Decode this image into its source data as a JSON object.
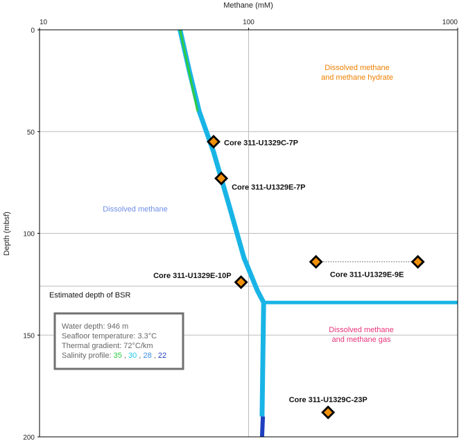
{
  "chart_data": {
    "type": "line",
    "xlabel": "Methane (mM)",
    "ylabel": "Depth (mbsf)",
    "xscale": "log",
    "xlim": [
      10,
      1000
    ],
    "ylim": [
      0,
      200
    ],
    "y_inverted": true,
    "x_ticks": [
      "10",
      "100",
      "1000"
    ],
    "y_ticks": [
      "0",
      "50",
      "100",
      "150",
      "200"
    ],
    "grid": true,
    "bsr_depth": 126,
    "bsr_label": "Estimated depth of BSR",
    "solubility_curve": [
      {
        "x": 47,
        "y": 0
      },
      {
        "x": 52,
        "y": 20
      },
      {
        "x": 58,
        "y": 40
      },
      {
        "x": 68,
        "y": 60
      },
      {
        "x": 80,
        "y": 85
      },
      {
        "x": 95,
        "y": 112
      },
      {
        "x": 110,
        "y": 128
      },
      {
        "x": 118,
        "y": 134
      },
      {
        "x": 116,
        "y": 190
      }
    ],
    "gas_branch": [
      {
        "x": 118,
        "y": 134
      },
      {
        "x": 1000,
        "y": 134
      }
    ],
    "salinity_segments": [
      {
        "salinity": "35",
        "color": "#2ecc40",
        "points": [
          {
            "x": 47,
            "y": 0
          },
          {
            "x": 57,
            "y": 40
          }
        ]
      },
      {
        "salinity": "22",
        "color": "#1f3fbf",
        "points": [
          {
            "x": 117,
            "y": 190
          },
          {
            "x": 116,
            "y": 200
          }
        ]
      }
    ],
    "cores": [
      {
        "label": "Core 311-U1329C-7P",
        "x": 68,
        "y": 55
      },
      {
        "label": "Core 311-U1329E-7P",
        "x": 74,
        "y": 73
      },
      {
        "label": "Core 311-U1329E-10P",
        "x": 92,
        "y": 124
      },
      {
        "label": "Core 311-U1329E-9E",
        "points": [
          {
            "x": 210,
            "y": 114
          },
          {
            "x": 645,
            "y": 114
          }
        ]
      },
      {
        "label": "Core 311-U1329C-23P",
        "x": 240,
        "y": 188
      }
    ],
    "regions": [
      {
        "lines": [
          "Dissolved methane",
          "and methane hydrate"
        ],
        "color": "#ee7f00"
      },
      {
        "lines": [
          "Dissolved methane"
        ],
        "color": "#6f8de8"
      },
      {
        "lines": [
          "Dissolved methane",
          "and methane gas"
        ],
        "color": "#e8337a"
      }
    ],
    "info_box": {
      "water_depth": "Water depth: 946 m",
      "seafloor_temperature": "Seafloor temperature: 3.3°C",
      "thermal_gradient": "Thermal gradient: 72°C/km",
      "salinity_prefix": "Salinity profile: ",
      "salinities": [
        {
          "value": "35",
          "color": "#2ecc40"
        },
        {
          "value": "30",
          "color": "#1ec8e8"
        },
        {
          "value": "28",
          "color": "#3a8ce8"
        },
        {
          "value": "22",
          "color": "#1f3fbf"
        }
      ]
    },
    "colors": {
      "curve": "#19b4e6",
      "marker_fill": "#f0900a",
      "marker_edge": "#000000",
      "grid": "#bbbbbb"
    }
  }
}
